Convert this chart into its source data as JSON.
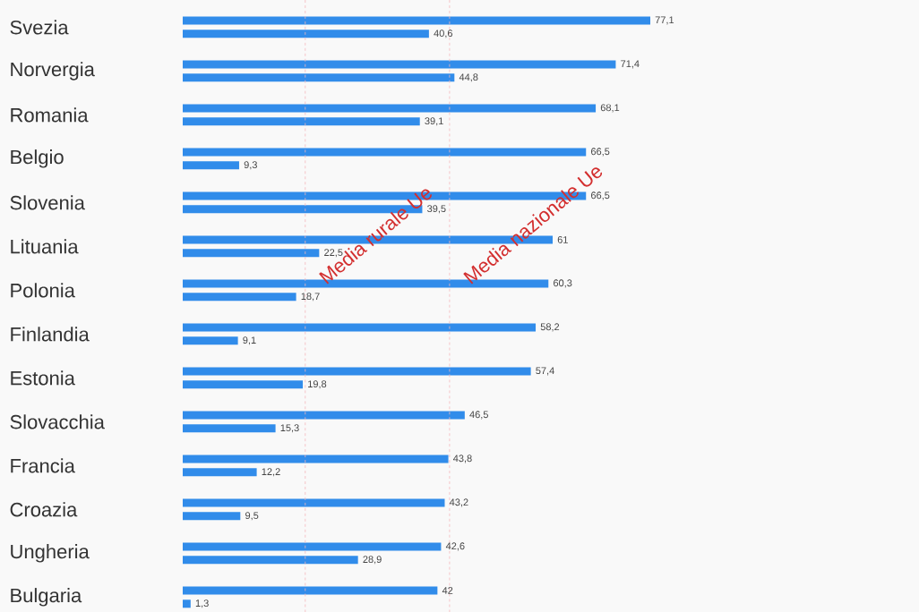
{
  "chart_data": {
    "type": "bar",
    "orientation": "horizontal",
    "categories": [
      "Svezia",
      "Norvergia",
      "Romania",
      "Belgio",
      "Slovenia",
      "Lituania",
      "Polonia",
      "Finlandia",
      "Estonia",
      "Slovacchia",
      "Francia",
      "Croazia",
      "Ungheria",
      "Bulgaria"
    ],
    "series": [
      {
        "color": "#318cea",
        "values": [
          77.1,
          71.4,
          68.1,
          66.5,
          66.5,
          61,
          60.3,
          58.2,
          57.4,
          46.5,
          43.8,
          43.2,
          42.6,
          42
        ],
        "value_labels": [
          "77,1",
          "71,4",
          "68,1",
          "66,5",
          "66,5",
          "61",
          "60,3",
          "58,2",
          "57,4",
          "46,5",
          "43,8",
          "43,2",
          "42,6",
          "42"
        ]
      },
      {
        "color": "#318cea",
        "values": [
          40.6,
          44.8,
          39.1,
          9.3,
          39.5,
          22.5,
          18.7,
          9.1,
          19.8,
          15.3,
          12.2,
          9.5,
          28.9,
          1.3
        ],
        "value_labels": [
          "40,6",
          "44,8",
          "39,1",
          "9,3",
          "39,5",
          "22,5",
          "18,7",
          "9,1",
          "19,8",
          "15,3",
          "12,2",
          "9,5",
          "28,9",
          "1,3"
        ]
      }
    ],
    "ref_lines": [
      {
        "axis": "x",
        "value": 20.2,
        "label": "Media rurale Ue",
        "color": "#f4b6bb",
        "line_style": "dashed"
      },
      {
        "axis": "x",
        "value": 44.0,
        "label": "Media nazionale Ue",
        "color": "#f4b6bb",
        "line_style": "dashed"
      }
    ]
  }
}
